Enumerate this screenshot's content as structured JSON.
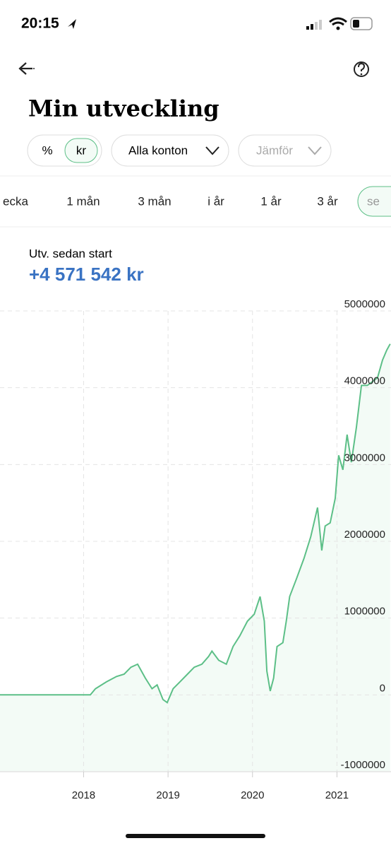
{
  "status_bar": {
    "time": "20:15"
  },
  "header": {
    "title": "Min utveckling"
  },
  "toggle": [
    "%",
    "kr"
  ],
  "filters": [
    "Alla konton",
    "Jämför"
  ],
  "tabs": [
    "ecka",
    "1 mån",
    "3 mån",
    "i år",
    "1 år",
    "3 år",
    "se"
  ],
  "summary": {
    "label": "Utv.  sedan start",
    "value": "+4 571 542 kr"
  },
  "chart_data": {
    "type": "line",
    "x": [
      2017.01,
      2018.08,
      2018.14,
      2018.27,
      2018.39,
      2018.48,
      2018.56,
      2018.64,
      2018.73,
      2018.81,
      2018.87,
      2018.94,
      2018.99,
      2019.06,
      2019.14,
      2019.23,
      2019.31,
      2019.4,
      2019.48,
      2019.52,
      2019.6,
      2019.69,
      2019.77,
      2019.85,
      2019.94,
      2020.02,
      2020.09,
      2020.14,
      2020.17,
      2020.21,
      2020.25,
      2020.29,
      2020.36,
      2020.4,
      2020.44,
      2020.52,
      2020.61,
      2020.69,
      2020.77,
      2020.82,
      2020.86,
      2020.92,
      2020.98,
      2021.02,
      2021.07,
      2021.12,
      2021.17,
      2021.23,
      2021.29,
      2021.36,
      2021.42,
      2021.48,
      2021.54,
      2021.59,
      2021.63
    ],
    "values": [
      0,
      0,
      80000,
      170000,
      240000,
      270000,
      360000,
      400000,
      220000,
      80000,
      130000,
      -60000,
      -100000,
      80000,
      170000,
      270000,
      360000,
      400000,
      500000,
      570000,
      450000,
      400000,
      630000,
      770000,
      960000,
      1050000,
      1280000,
      960000,
      310000,
      50000,
      220000,
      630000,
      680000,
      960000,
      1280000,
      1510000,
      1780000,
      2060000,
      2440000,
      1880000,
      2200000,
      2240000,
      2560000,
      3120000,
      2930000,
      3390000,
      3030000,
      3480000,
      4030000,
      4030000,
      4080000,
      4130000,
      4360000,
      4490000,
      4570000
    ],
    "color": "#5cbf87",
    "fill": "#f3fbf6",
    "xlim": [
      2017.01,
      2021.64
    ],
    "xticks": [
      2018,
      2019,
      2020,
      2021
    ],
    "ylim": [
      -1000000,
      5000000
    ],
    "yticks": [
      5000000,
      4000000,
      3000000,
      2000000,
      1000000,
      0,
      -1000000
    ],
    "grid": true
  }
}
